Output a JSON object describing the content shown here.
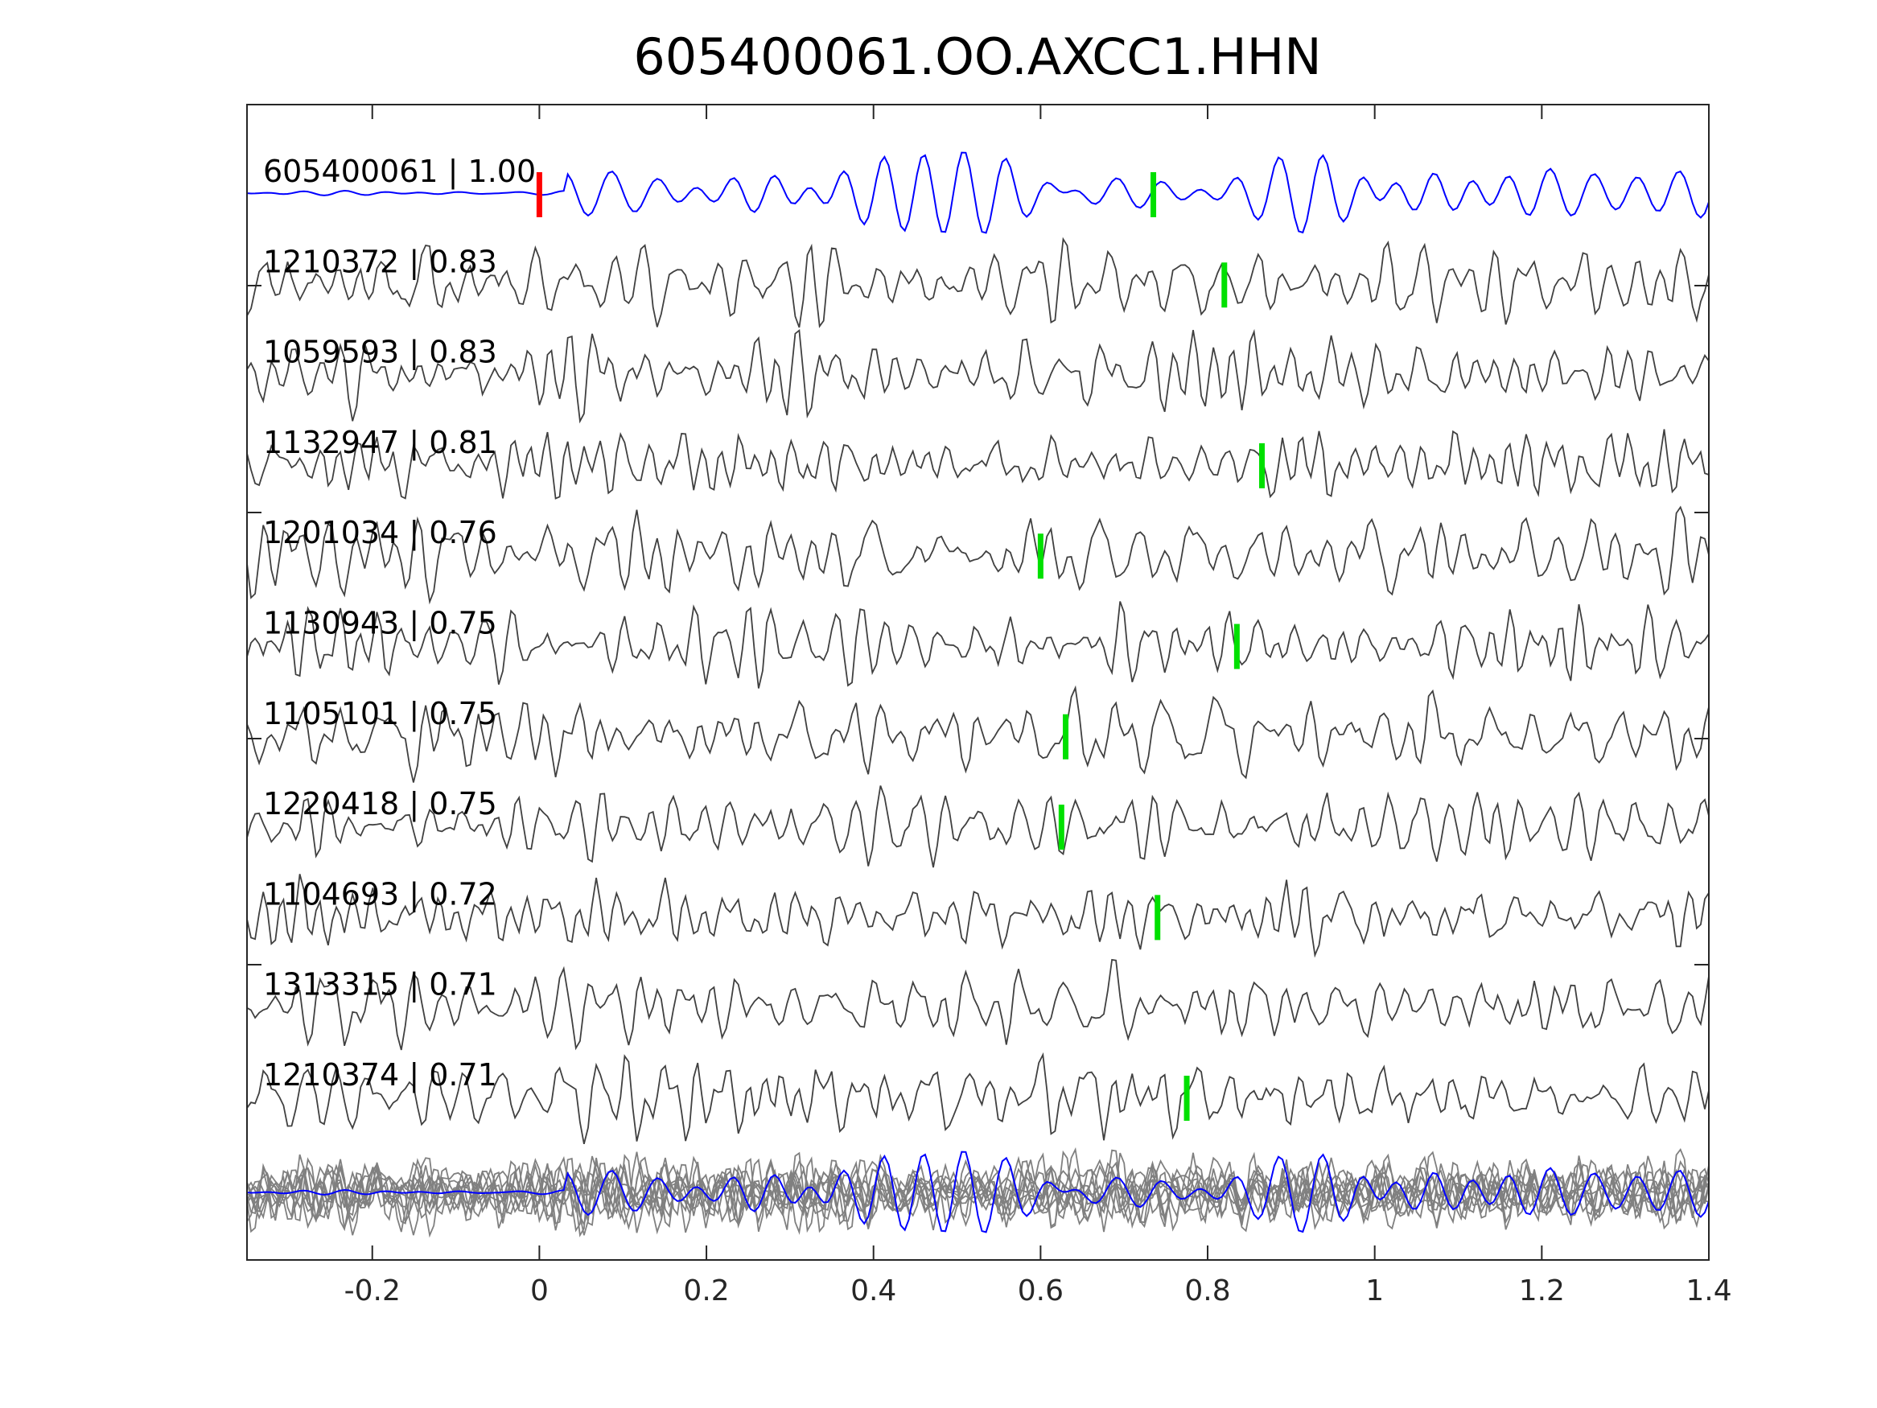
{
  "chart_data": {
    "type": "line",
    "title": "605400061.OO.AXCC1.HHN",
    "xlabel": "",
    "ylabel": "",
    "xlim": [
      -0.35,
      1.4
    ],
    "xticks": [
      "-0.2",
      "0",
      "0.2",
      "0.4",
      "0.6",
      "0.8",
      "1",
      "1.2",
      "1.4"
    ],
    "xtick_values": [
      -0.2,
      0,
      0.2,
      0.4,
      0.6,
      0.8,
      1,
      1.2,
      1.4
    ],
    "grid": false,
    "reference_pick_time": 0,
    "colors": {
      "reference": "#0000ff",
      "trace": "#404040",
      "stack": "#808080",
      "ref_pick": "#ff0000",
      "pick": "#00e000"
    },
    "traces": [
      {
        "label": "605400061 | 1.00",
        "id": "605400061",
        "cc": 1.0,
        "pick": 0.735,
        "reference": true
      },
      {
        "label": "1210372 | 0.83",
        "id": "1210372",
        "cc": 0.83,
        "pick": 0.82
      },
      {
        "label": "1059593 | 0.83",
        "id": "1059593",
        "cc": 0.83,
        "pick": null
      },
      {
        "label": "1132947 | 0.81",
        "id": "1132947",
        "cc": 0.81,
        "pick": 0.865
      },
      {
        "label": "1201034 | 0.76",
        "id": "1201034",
        "cc": 0.76,
        "pick": 0.6
      },
      {
        "label": "1130943 | 0.75",
        "id": "1130943",
        "cc": 0.75,
        "pick": 0.835
      },
      {
        "label": "1105101 | 0.75",
        "id": "1105101",
        "cc": 0.75,
        "pick": 0.63
      },
      {
        "label": "1220418 | 0.75",
        "id": "1220418",
        "cc": 0.75,
        "pick": 0.625
      },
      {
        "label": "1104693 | 0.72",
        "id": "1104693",
        "cc": 0.72,
        "pick": 0.74
      },
      {
        "label": "1313315 | 0.71",
        "id": "1313315",
        "cc": 0.71,
        "pick": null
      },
      {
        "label": "1210374 | 0.71",
        "id": "1210374",
        "cc": 0.71,
        "pick": 0.775
      }
    ]
  }
}
